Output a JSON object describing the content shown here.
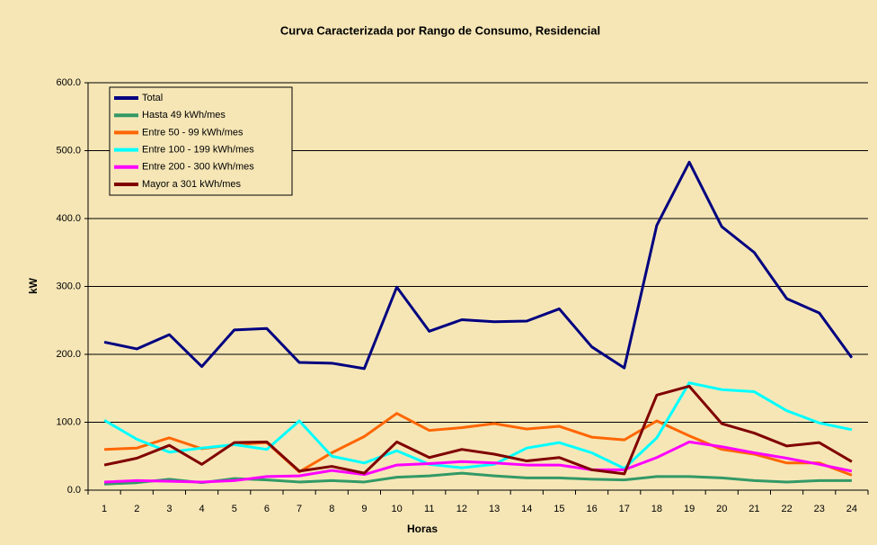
{
  "chart_data": {
    "type": "line",
    "title": "Curva Caracterizada por Rango de Consumo, Residencial",
    "xlabel": "Horas",
    "ylabel": "kW",
    "categories": [
      "1",
      "2",
      "3",
      "4",
      "5",
      "6",
      "7",
      "8",
      "9",
      "10",
      "11",
      "12",
      "13",
      "14",
      "15",
      "16",
      "17",
      "18",
      "19",
      "20",
      "21",
      "22",
      "23",
      "24"
    ],
    "series": [
      {
        "name": "Total",
        "color": "#000080",
        "values": [
          218,
          208,
          229,
          182,
          236,
          238,
          188,
          187,
          179,
          299,
          234,
          251,
          248,
          249,
          267,
          211,
          180,
          390,
          483,
          388,
          350,
          282,
          261,
          195
        ]
      },
      {
        "name": "Hasta 49 kWh/mes",
        "color": "#339966",
        "values": [
          9,
          11,
          16,
          11,
          17,
          15,
          12,
          14,
          12,
          19,
          21,
          25,
          21,
          18,
          18,
          16,
          15,
          20,
          20,
          18,
          14,
          12,
          14,
          14
        ]
      },
      {
        "name": "Entre 50 - 99  kWh/mes",
        "color": "#ff6600",
        "values": [
          60,
          62,
          77,
          61,
          67,
          70,
          27,
          55,
          79,
          113,
          88,
          92,
          98,
          90,
          94,
          78,
          74,
          102,
          80,
          60,
          53,
          40,
          40,
          22
        ]
      },
      {
        "name": "Entre 100 - 199  kWh/mes",
        "color": "#00ffff",
        "values": [
          103,
          75,
          56,
          62,
          67,
          60,
          102,
          50,
          40,
          58,
          38,
          33,
          38,
          62,
          70,
          55,
          32,
          77,
          158,
          148,
          145,
          117,
          99,
          89
        ]
      },
      {
        "name": "Entre 200 - 300  kWh/mes",
        "color": "#ff00ff",
        "values": [
          12,
          14,
          13,
          12,
          14,
          20,
          21,
          29,
          23,
          37,
          39,
          42,
          40,
          37,
          37,
          30,
          30,
          48,
          71,
          64,
          55,
          47,
          38,
          28
        ]
      },
      {
        "name": "Mayor a 301  kWh/mes",
        "color": "#800000",
        "values": [
          37,
          47,
          66,
          38,
          70,
          71,
          28,
          35,
          25,
          71,
          48,
          60,
          53,
          43,
          48,
          30,
          24,
          140,
          153,
          98,
          84,
          65,
          70,
          42
        ]
      }
    ],
    "ylim": [
      0,
      600
    ],
    "yticks": [
      {
        "value": 0,
        "label": "0.0"
      },
      {
        "value": 100,
        "label": "100.0"
      },
      {
        "value": 200,
        "label": "200.0"
      },
      {
        "value": 300,
        "label": "300.0"
      },
      {
        "value": 400,
        "label": "400.0"
      },
      {
        "value": 500,
        "label": "500.0"
      },
      {
        "value": 600,
        "label": "600.0"
      }
    ],
    "grid": true,
    "legend": "upper left"
  }
}
